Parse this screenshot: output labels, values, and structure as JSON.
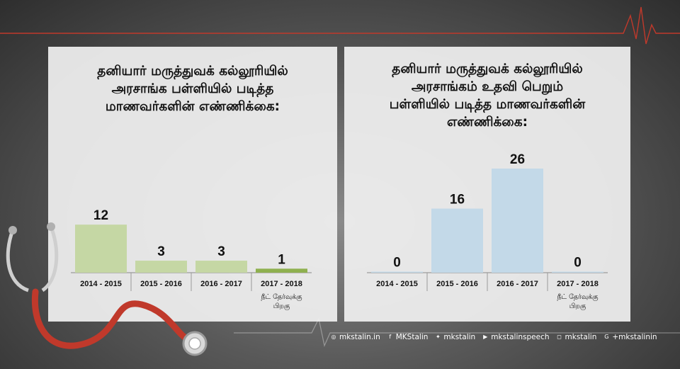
{
  "colors": {
    "green_bar": "#c5d7a4",
    "green_bar_strong": "#8fb04f",
    "blue_bar": "#c3d9e8",
    "pulse": "#c0392b"
  },
  "chart_data": [
    {
      "type": "bar",
      "title": "தனியார் மருத்துவக் கல்லூரியில் அரசாங்க பள்ளியில் படித்த மாணவர்களின் எண்ணிக்கை:",
      "title_lines": [
        "தனியார் மருத்துவக் கல்லூரியில்",
        "அரசாங்க பள்ளியில் படித்த",
        "மாணவர்களின் எண்ணிக்கை:"
      ],
      "categories": [
        "2014 - 2015",
        "2015 - 2016",
        "2016 - 2017",
        "2017 - 2018"
      ],
      "category_sublabel": "நீட் தேர்வுக்கு பிறகு",
      "sublabel_lines": [
        "நீட் தேர்வுக்கு",
        "பிறகு"
      ],
      "values": [
        12,
        3,
        3,
        1
      ],
      "ylim": [
        0,
        26
      ]
    },
    {
      "type": "bar",
      "title": "தனியார் மருத்துவக் கல்லூரியில் அரசாங்கம் உதவி பெறும் பள்ளியில் படித்த மாணவர்களின் எண்ணிக்கை:",
      "title_lines": [
        "தனியார் மருத்துவக் கல்லூரியில்",
        "அரசாங்கம் உதவி பெறும்",
        "பள்ளியில் படித்த மாணவர்களின்",
        "எண்ணிக்கை:"
      ],
      "categories": [
        "2014 - 2015",
        "2015 - 2016",
        "2016 - 2017",
        "2017 - 2018"
      ],
      "category_sublabel": "நீட் தேர்வுக்கு பிறகு",
      "sublabel_lines": [
        "நீட் தேர்வுக்கு",
        "பிறகு"
      ],
      "values": [
        0,
        16,
        26,
        0
      ],
      "ylim": [
        0,
        26
      ]
    }
  ],
  "footer": {
    "website": "mkstalin.in",
    "facebook": "MKStalin",
    "twitter": "mkstalin",
    "youtube": "mkstalinspeech",
    "instagram": "mkstalin",
    "googleplus": "+mkstalinin",
    "icons": [
      "globe-icon",
      "facebook-icon",
      "twitter-icon",
      "youtube-icon",
      "instagram-icon",
      "google-plus-icon"
    ]
  }
}
